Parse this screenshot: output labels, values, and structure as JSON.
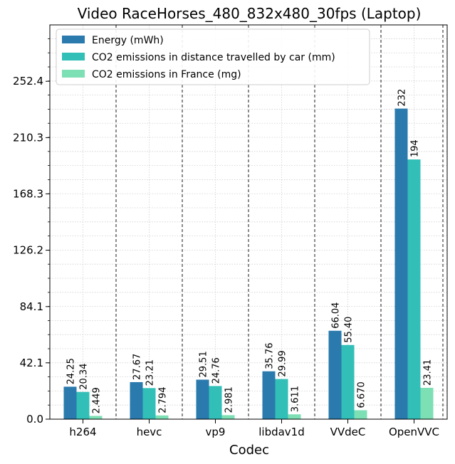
{
  "chart_data": {
    "type": "bar",
    "title": "Video RaceHorses_480_832x480_30fps (Laptop)",
    "xlabel": "Codec",
    "ylabel": "",
    "categories": [
      "h264",
      "hevc",
      "vp9",
      "libdav1d",
      "VVdeC",
      "OpenVVC"
    ],
    "series": [
      {
        "name": "Energy (mWh)",
        "color": "#2a7aad",
        "values": [
          24.25,
          27.67,
          29.51,
          35.76,
          66.04,
          232
        ],
        "labels": [
          "24.25",
          "27.67",
          "29.51",
          "35.76",
          "66.04",
          "232"
        ]
      },
      {
        "name": "CO2 emissions in distance travelled by car (mm)",
        "color": "#32bfb7",
        "values": [
          20.34,
          23.21,
          24.76,
          29.99,
          55.4,
          194
        ],
        "labels": [
          "20.34",
          "23.21",
          "24.76",
          "29.99",
          "55.40",
          "194"
        ]
      },
      {
        "name": "CO2 emissions in France (mg)",
        "color": "#7ddfb4",
        "values": [
          2.449,
          2.794,
          2.981,
          3.611,
          6.67,
          23.41
        ],
        "labels": [
          "2.449",
          "2.794",
          "2.981",
          "3.611",
          "6.670",
          "23.41"
        ]
      }
    ],
    "yticks": [
      0.0,
      42.1,
      84.1,
      126.2,
      168.3,
      210.3,
      252.4
    ],
    "ytick_labels": [
      "0.0",
      "42.1",
      "84.1",
      "126.2",
      "168.3",
      "210.3",
      "252.4"
    ],
    "ylim": [
      0,
      294.5
    ],
    "grid": true,
    "legend_position": "top-left"
  }
}
